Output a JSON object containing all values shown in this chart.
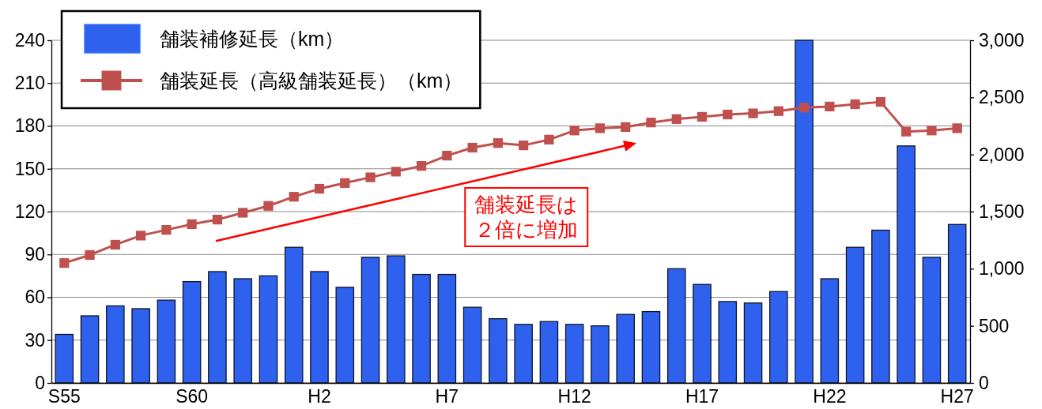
{
  "chart_data": {
    "type": "bar",
    "categories": [
      "S55",
      null,
      null,
      null,
      null,
      "S60",
      null,
      null,
      null,
      null,
      "H2",
      null,
      null,
      null,
      null,
      "H7",
      null,
      null,
      null,
      null,
      "H12",
      null,
      null,
      null,
      null,
      "H17",
      null,
      null,
      null,
      null,
      "H22",
      null,
      null,
      null,
      null,
      "H27"
    ],
    "series": [
      {
        "name": "舗装補修延長（km）",
        "color": "#2e62ee",
        "values": [
          34,
          47,
          54,
          52,
          58,
          71,
          78,
          73,
          75,
          95,
          78,
          67,
          88,
          89,
          76,
          76,
          53,
          45,
          41,
          43,
          41,
          40,
          48,
          50,
          80,
          69,
          57,
          56,
          64,
          240,
          73,
          95,
          107,
          166,
          88,
          111
        ]
      },
      {
        "name": "舗装延長（高級舗装延長）（km）",
        "type": "line",
        "axis": "y2",
        "color": "#c0504d",
        "values": [
          1050,
          1120,
          1210,
          1290,
          1340,
          1390,
          1430,
          1490,
          1550,
          1630,
          1700,
          1750,
          1800,
          1850,
          1900,
          1990,
          2060,
          2100,
          2080,
          2130,
          2210,
          2230,
          2240,
          2280,
          2310,
          2330,
          2350,
          2360,
          2380,
          2410,
          2420,
          2440,
          2460,
          2200,
          2210,
          2230
        ]
      }
    ],
    "ylim": [
      0,
      240
    ],
    "yticks": [
      0,
      30,
      60,
      90,
      120,
      150,
      180,
      210,
      240
    ],
    "y2lim": [
      0,
      3000
    ],
    "y2ticks": [
      0,
      500,
      {
        "value": 1000,
        "label": "1,000"
      },
      {
        "value": 1500,
        "label": "1,500"
      },
      {
        "value": 2000,
        "label": "2,000"
      },
      {
        "value": 2500,
        "label": "2,500"
      },
      {
        "value": 3000,
        "label": "3,000"
      }
    ],
    "grid": "y",
    "legend": "top left",
    "marker": "square",
    "annotations": [
      "舗装延長は２倍に増加"
    ]
  }
}
